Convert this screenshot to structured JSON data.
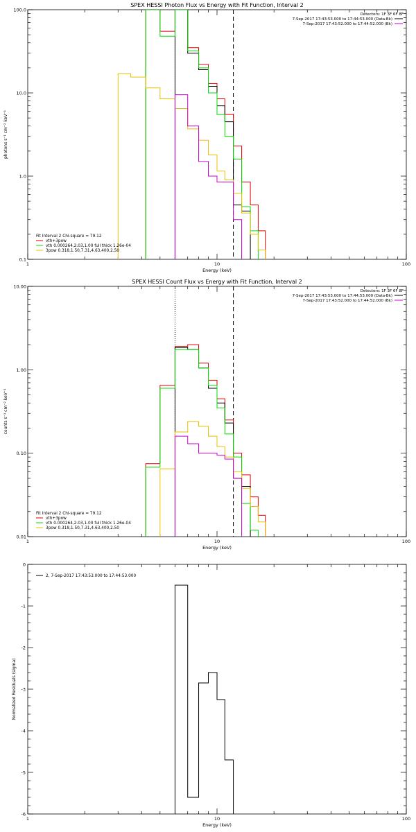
{
  "colors": {
    "background": "#ffffff",
    "axes": "#000000",
    "data": "#000000",
    "model_total": "#e00000",
    "vth": "#00dd00",
    "3pow": "#e8c000",
    "background_series": "#cc00cc"
  },
  "chart_data": [
    {
      "type": "line",
      "title": "SPEX HESSI Photon Flux vs Energy with Fit Function, Interval 2",
      "xlabel": "Energy (keV)",
      "ylabel": "photons s⁻¹ cm⁻² keV⁻¹",
      "xscale": "log",
      "yscale": "log",
      "xlim": [
        1,
        100
      ],
      "ylim": [
        0.1,
        100
      ],
      "xticks": [
        "1",
        "10",
        "100"
      ],
      "yticks": [
        "0.1",
        "1.0",
        "10.0",
        "100.0"
      ],
      "info": {
        "detectors": "Detectors: 1F 3F 6F 8F",
        "lines": [
          {
            "text": "7-Sep-2017 17:43:53.000 to 17:44:53.000 (Data-Bk)",
            "color": "#000000"
          },
          {
            "text": "7-Sep-2017 17:43:52.000 to 17:44:52.000 (Bk)",
            "color": "#cc00cc"
          }
        ]
      },
      "legend": {
        "header": "Fit Interval 2   Chi-square = 79.12",
        "entries": [
          {
            "text": "vth+3pow",
            "color": "#e00000"
          },
          {
            "text": "vth 0.000264,2.03,1.00  full thick 1.26e-04",
            "color": "#00dd00"
          },
          {
            "text": "3pow 0.318,1.50,7.31,4.63,400,2.50",
            "color": "#e8c000"
          }
        ]
      },
      "vlines": [
        {
          "x": 6.0,
          "style": "dotted",
          "color": "#cc00cc"
        },
        {
          "x": 12.2,
          "style": "dashed",
          "color": "#000000"
        }
      ],
      "series": [
        {
          "name": "vth+3pow",
          "color": "#e00000",
          "edges": [
            4.2,
            5.0,
            6.0,
            7.0,
            8.0,
            9.0,
            10.0,
            11.0,
            12.2,
            13.5,
            15.0,
            16.5,
            18.0
          ],
          "values": [
            100,
            55,
            100,
            35,
            22,
            13,
            8.5,
            5.5,
            2.3,
            0.85,
            0.45,
            0.22,
            0.1
          ]
        },
        {
          "name": "Data-Bk",
          "color": "#000000",
          "edges": [
            6.0,
            7.0,
            8.0,
            9.0,
            10.0,
            11.0,
            12.2,
            13.5,
            15.0
          ],
          "values": [
            100,
            30,
            19,
            12,
            7.0,
            4.5,
            0.45,
            0.38,
            0.1
          ]
        },
        {
          "name": "vth 0.000264,2.03,1.00  full thick 1.26e-04",
          "color": "#00dd00",
          "edges": [
            4.2,
            5.0,
            6.0,
            7.0,
            8.0,
            9.0,
            10.0,
            11.0,
            12.2,
            13.5,
            15.0,
            16.5
          ],
          "values": [
            100,
            48,
            100,
            32,
            20,
            10,
            5.5,
            3.0,
            1.6,
            0.43,
            0.22,
            0.1
          ]
        },
        {
          "name": "3pow 0.318,1.50,7.31,4.63,400,2.50",
          "color": "#e8c000",
          "edges": [
            3.0,
            3.5,
            4.2,
            5.0,
            6.0,
            7.0,
            8.0,
            9.0,
            10.0,
            11.0,
            12.2,
            13.5,
            15.0,
            16.5,
            18.0
          ],
          "values": [
            17,
            15.5,
            11.5,
            8.5,
            6.5,
            3.7,
            2.7,
            1.8,
            1.15,
            0.9,
            0.62,
            0.36,
            0.2,
            0.13,
            0.1
          ]
        },
        {
          "name": "Bk",
          "color": "#cc00cc",
          "edges": [
            6.0,
            7.0,
            8.0,
            9.0,
            10.0,
            11.0,
            12.2,
            13.5
          ],
          "values": [
            9.5,
            4.0,
            1.5,
            1.0,
            0.85,
            0.85,
            0.3,
            0.1
          ]
        }
      ]
    },
    {
      "type": "line",
      "title": "SPEX HESSI Count Flux vs Energy with Fit Function, Interval 2",
      "xlabel": "Energy (keV)",
      "ylabel": "counts s⁻¹ cm⁻² keV⁻¹",
      "xscale": "log",
      "yscale": "log",
      "xlim": [
        1,
        100
      ],
      "ylim": [
        0.01,
        10
      ],
      "xticks": [
        "1",
        "10",
        "100"
      ],
      "yticks": [
        "0.01",
        "0.10",
        "1.00",
        "10.00"
      ],
      "info": {
        "detectors": "Detectors: 1F 3F 6F 8F",
        "lines": [
          {
            "text": "7-Sep-2017 17:43:53.000 to 17:44:53.000 (Data-Bk)",
            "color": "#000000"
          },
          {
            "text": "7-Sep-2017 17:43:52.000 to 17:44:52.000 (Bk)",
            "color": "#cc00cc"
          }
        ]
      },
      "legend": {
        "header": "Fit Interval 2   Chi-square = 79.12",
        "entries": [
          {
            "text": "vth+3pow",
            "color": "#e00000"
          },
          {
            "text": "vth 0.000264,2.03,1.00  full thick 1.26e-04",
            "color": "#00dd00"
          },
          {
            "text": "3pow 0.318,1.50,7.31,4.63,400,2.50",
            "color": "#e8c000"
          }
        ]
      },
      "vlines": [
        {
          "x": 6.0,
          "style": "dotted",
          "color": "#000000"
        },
        {
          "x": 12.2,
          "style": "dashed",
          "color": "#000000"
        }
      ],
      "series": [
        {
          "name": "vth+3pow",
          "color": "#e00000",
          "edges": [
            4.2,
            5.0,
            6.0,
            7.0,
            8.0,
            9.0,
            10.0,
            11.0,
            12.2,
            13.5,
            15.0,
            16.5,
            18.0
          ],
          "values": [
            0.075,
            0.65,
            1.9,
            2.0,
            1.2,
            0.75,
            0.45,
            0.25,
            0.1,
            0.055,
            0.03,
            0.018,
            0.01
          ]
        },
        {
          "name": "Data-Bk",
          "color": "#000000",
          "edges": [
            6.0,
            7.0,
            8.0,
            9.0,
            10.0,
            11.0,
            12.2,
            13.5,
            15.0
          ],
          "values": [
            1.85,
            1.75,
            1.05,
            0.6,
            0.4,
            0.23,
            0.05,
            0.04,
            0.01
          ]
        },
        {
          "name": "vth 0.000264,2.03,1.00  full thick 1.26e-04",
          "color": "#00dd00",
          "edges": [
            4.2,
            5.0,
            6.0,
            7.0,
            8.0,
            9.0,
            10.0,
            11.0,
            12.2,
            13.5,
            15.0,
            16.5
          ],
          "values": [
            0.068,
            0.6,
            1.75,
            1.75,
            1.05,
            0.65,
            0.35,
            0.17,
            0.09,
            0.025,
            0.012,
            0.01
          ]
        },
        {
          "name": "3pow 0.318,1.50,7.31,4.63,400,2.50",
          "color": "#e8c000",
          "edges": [
            5.0,
            6.0,
            7.0,
            8.0,
            9.0,
            10.0,
            11.0,
            12.2,
            13.5,
            15.0,
            16.5,
            18.0
          ],
          "values": [
            0.065,
            0.18,
            0.24,
            0.21,
            0.16,
            0.12,
            0.09,
            0.06,
            0.038,
            0.023,
            0.015,
            0.01
          ]
        },
        {
          "name": "Bk",
          "color": "#cc00cc",
          "edges": [
            6.0,
            7.0,
            8.0,
            9.0,
            10.0,
            11.0,
            12.2,
            13.5
          ],
          "values": [
            0.16,
            0.13,
            0.1,
            0.1,
            0.095,
            0.085,
            0.05,
            0.01
          ]
        }
      ]
    },
    {
      "type": "line",
      "title": "",
      "xlabel": "Energy (keV)",
      "ylabel": "Normalized Residuals (sigma)",
      "xscale": "log",
      "yscale": "linear",
      "xlim": [
        1,
        100
      ],
      "ylim": [
        -6,
        0
      ],
      "xticks": [
        "1",
        "10",
        "100"
      ],
      "yticks": [
        "0",
        "-1",
        "-2",
        "-3",
        "-4",
        "-5",
        "-6"
      ],
      "legend": {
        "header": "",
        "entries": [
          {
            "text": "2, 7-Sep-2017 17:43:53.000 to 17:44:53.000",
            "color": "#000000"
          }
        ]
      },
      "series": [
        {
          "name": "2, 7-Sep-2017 17:43:53.000 to 17:44:53.000",
          "color": "#000000",
          "edges": [
            6.0,
            7.0,
            8.0,
            9.0,
            10.0,
            11.0,
            12.2
          ],
          "values": [
            -0.5,
            -5.6,
            -2.85,
            -2.6,
            -3.25,
            -4.7
          ]
        }
      ]
    }
  ]
}
